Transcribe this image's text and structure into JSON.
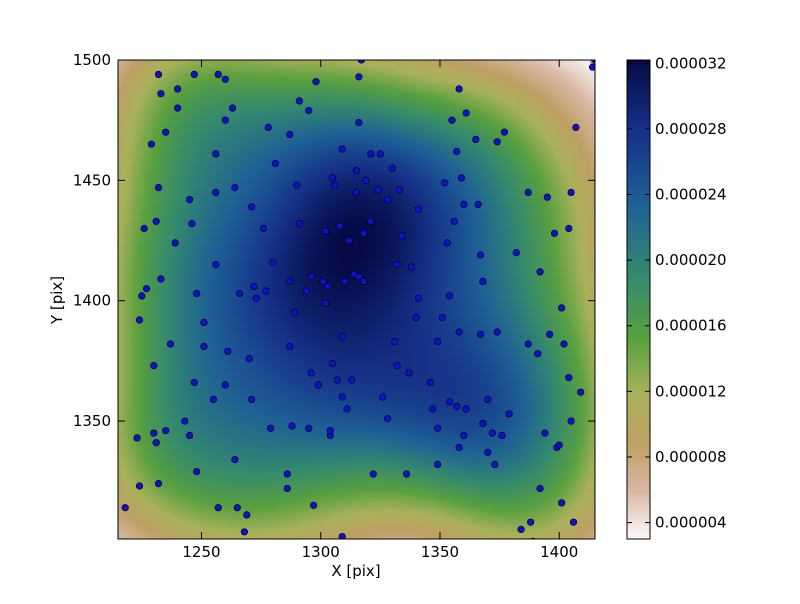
{
  "chart_data": {
    "type": "heatmap",
    "title": "",
    "xlabel": "X [pix]",
    "ylabel": "Y [pix]",
    "xlim": [
      1215,
      1415
    ],
    "ylim": [
      1301,
      1500
    ],
    "xticks": [
      "1250",
      "1300",
      "1350",
      "1400"
    ],
    "yticks": [
      "1350",
      "1400",
      "1450",
      "1500"
    ],
    "grid": false,
    "colormap": "gist_earth_r",
    "colorbar": {
      "range": [
        3e-06,
        3.22e-05
      ],
      "ticks": [
        "0.000004",
        "0.000008",
        "0.000012",
        "0.000016",
        "0.000020",
        "0.000024",
        "0.000028",
        "0.000032"
      ]
    },
    "point_color": "#1010d0",
    "points": [
      [
        1218,
        1314
      ],
      [
        1223,
        1343
      ],
      [
        1224,
        1323
      ],
      [
        1224,
        1392
      ],
      [
        1225,
        1402
      ],
      [
        1226,
        1430
      ],
      [
        1227,
        1405
      ],
      [
        1229,
        1465
      ],
      [
        1230,
        1373
      ],
      [
        1230,
        1345
      ],
      [
        1231,
        1341
      ],
      [
        1231,
        1433
      ],
      [
        1232,
        1447
      ],
      [
        1232,
        1324
      ],
      [
        1232,
        1494
      ],
      [
        1233,
        1486
      ],
      [
        1233,
        1409
      ],
      [
        1235,
        1470
      ],
      [
        1235,
        1346
      ],
      [
        1237,
        1382
      ],
      [
        1239,
        1424
      ],
      [
        1240,
        1488
      ],
      [
        1240,
        1480
      ],
      [
        1243,
        1350
      ],
      [
        1245,
        1442
      ],
      [
        1245,
        1344
      ],
      [
        1246,
        1432
      ],
      [
        1247,
        1494
      ],
      [
        1247,
        1366
      ],
      [
        1248,
        1403
      ],
      [
        1248,
        1329
      ],
      [
        1251,
        1391
      ],
      [
        1251,
        1381
      ],
      [
        1255,
        1359
      ],
      [
        1256,
        1461
      ],
      [
        1256,
        1445
      ],
      [
        1256,
        1415
      ],
      [
        1257,
        1494
      ],
      [
        1257,
        1314
      ],
      [
        1260,
        1492
      ],
      [
        1260,
        1475
      ],
      [
        1260,
        1365
      ],
      [
        1261,
        1379
      ],
      [
        1263,
        1480
      ],
      [
        1264,
        1447
      ],
      [
        1264,
        1334
      ],
      [
        1265,
        1314
      ],
      [
        1266,
        1403
      ],
      [
        1268,
        1304
      ],
      [
        1269,
        1311
      ],
      [
        1270,
        1376
      ],
      [
        1271,
        1359
      ],
      [
        1271,
        1439
      ],
      [
        1272,
        1406
      ],
      [
        1273,
        1401
      ],
      [
        1276,
        1430
      ],
      [
        1277,
        1404
      ],
      [
        1278,
        1472
      ],
      [
        1279,
        1347
      ],
      [
        1280,
        1416
      ],
      [
        1281,
        1457
      ],
      [
        1286,
        1328
      ],
      [
        1286,
        1322
      ],
      [
        1287,
        1408
      ],
      [
        1287,
        1381
      ],
      [
        1287,
        1469
      ],
      [
        1288,
        1348
      ],
      [
        1289,
        1395
      ],
      [
        1290,
        1448
      ],
      [
        1291,
        1432
      ],
      [
        1291,
        1483
      ],
      [
        1294,
        1404
      ],
      [
        1295,
        1347
      ],
      [
        1295,
        1479
      ],
      [
        1296,
        1370
      ],
      [
        1296,
        1410
      ],
      [
        1297,
        1315
      ],
      [
        1298,
        1491
      ],
      [
        1299,
        1365
      ],
      [
        1301,
        1408
      ],
      [
        1302,
        1399
      ],
      [
        1302,
        1429
      ],
      [
        1303,
        1406
      ],
      [
        1304,
        1344
      ],
      [
        1304,
        1346
      ],
      [
        1305,
        1374
      ],
      [
        1305,
        1451
      ],
      [
        1306,
        1448
      ],
      [
        1307,
        1367
      ],
      [
        1308,
        1431
      ],
      [
        1309,
        1463
      ],
      [
        1309,
        1385
      ],
      [
        1309,
        1360
      ],
      [
        1309,
        1302
      ],
      [
        1310,
        1408
      ],
      [
        1311,
        1355
      ],
      [
        1312,
        1425
      ],
      [
        1313,
        1367
      ],
      [
        1314,
        1411
      ],
      [
        1315,
        1454
      ],
      [
        1315,
        1445
      ],
      [
        1316,
        1493
      ],
      [
        1316,
        1474
      ],
      [
        1316,
        1410
      ],
      [
        1317,
        1500
      ],
      [
        1318,
        1408
      ],
      [
        1318,
        1428
      ],
      [
        1319,
        1450
      ],
      [
        1321,
        1461
      ],
      [
        1321,
        1433
      ],
      [
        1322,
        1328
      ],
      [
        1324,
        1446
      ],
      [
        1325,
        1461
      ],
      [
        1326,
        1360
      ],
      [
        1328,
        1351
      ],
      [
        1328,
        1442
      ],
      [
        1330,
        1455
      ],
      [
        1331,
        1383
      ],
      [
        1332,
        1415
      ],
      [
        1332,
        1373
      ],
      [
        1333,
        1446
      ],
      [
        1334,
        1427
      ],
      [
        1336,
        1328
      ],
      [
        1337,
        1370
      ],
      [
        1338,
        1414
      ],
      [
        1340,
        1393
      ],
      [
        1341,
        1401
      ],
      [
        1341,
        1438
      ],
      [
        1346,
        1366
      ],
      [
        1347,
        1355
      ],
      [
        1349,
        1383
      ],
      [
        1349,
        1332
      ],
      [
        1349,
        1347
      ],
      [
        1351,
        1393
      ],
      [
        1352,
        1449
      ],
      [
        1353,
        1424
      ],
      [
        1354,
        1358
      ],
      [
        1354,
        1402
      ],
      [
        1355,
        1475
      ],
      [
        1356,
        1433
      ],
      [
        1357,
        1462
      ],
      [
        1357,
        1356
      ],
      [
        1358,
        1339
      ],
      [
        1358,
        1387
      ],
      [
        1358,
        1488
      ],
      [
        1359,
        1451
      ],
      [
        1360,
        1344
      ],
      [
        1360,
        1440
      ],
      [
        1361,
        1355
      ],
      [
        1361,
        1478
      ],
      [
        1365,
        1467
      ],
      [
        1366,
        1440
      ],
      [
        1367,
        1419
      ],
      [
        1367,
        1386
      ],
      [
        1368,
        1408
      ],
      [
        1368,
        1349
      ],
      [
        1370,
        1359
      ],
      [
        1370,
        1337
      ],
      [
        1372,
        1345
      ],
      [
        1373,
        1332
      ],
      [
        1374,
        1387
      ],
      [
        1374,
        1466
      ],
      [
        1376,
        1344
      ],
      [
        1377,
        1470
      ],
      [
        1379,
        1353
      ],
      [
        1382,
        1420
      ],
      [
        1384,
        1305
      ],
      [
        1387,
        1445
      ],
      [
        1387,
        1382
      ],
      [
        1388,
        1308
      ],
      [
        1389,
        1300
      ],
      [
        1391,
        1378
      ],
      [
        1392,
        1322
      ],
      [
        1392,
        1412
      ],
      [
        1394,
        1345
      ],
      [
        1395,
        1443
      ],
      [
        1396,
        1386
      ],
      [
        1398,
        1428
      ],
      [
        1399,
        1339
      ],
      [
        1400,
        1340
      ],
      [
        1401,
        1316
      ],
      [
        1401,
        1397
      ],
      [
        1402,
        1382
      ],
      [
        1404,
        1430
      ],
      [
        1404,
        1368
      ],
      [
        1405,
        1350
      ],
      [
        1405,
        1445
      ],
      [
        1406,
        1308
      ],
      [
        1407,
        1472
      ],
      [
        1409,
        1362
      ],
      [
        1414,
        1497
      ]
    ]
  }
}
